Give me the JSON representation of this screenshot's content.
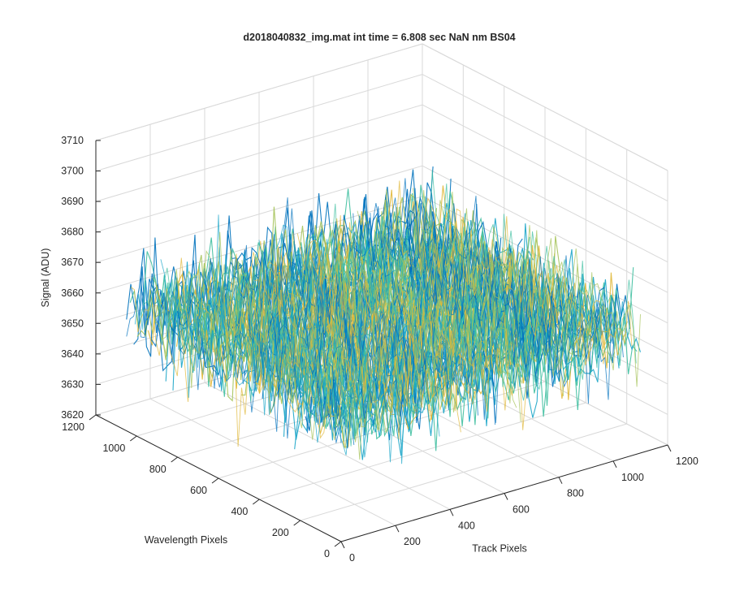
{
  "chart_data": {
    "type": "surface",
    "title": "d2018040832_img.mat int time = 6.808 sec  NaN nm BS04",
    "xlabel": "Track Pixels",
    "ylabel": "Wavelength Pixels",
    "zlabel": "Signal (ADU)",
    "xlim": [
      0,
      1200
    ],
    "ylim": [
      0,
      1200
    ],
    "zlim": [
      3620,
      3710
    ],
    "x_ticks": [
      "0",
      "200",
      "400",
      "600",
      "800",
      "1000",
      "1200"
    ],
    "y_ticks": [
      "0",
      "200",
      "400",
      "600",
      "800",
      "1000",
      "1200"
    ],
    "z_ticks": [
      "3620",
      "3630",
      "3640",
      "3650",
      "3660",
      "3670",
      "3680",
      "3690",
      "3700",
      "3710"
    ],
    "surface_extent": {
      "x": [
        0,
        1100
      ],
      "y": [
        0,
        1050
      ]
    },
    "signal_mean_approx": 3660,
    "signal_range_approx": [
      3625,
      3705
    ],
    "grid": true,
    "colormap": [
      "#0072bd",
      "#1aa5c8",
      "#3fbfa0",
      "#a5c35a",
      "#e0b83a"
    ]
  }
}
